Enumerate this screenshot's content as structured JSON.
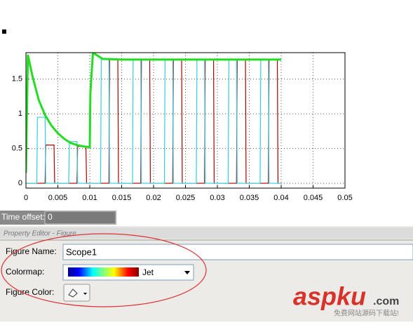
{
  "chart_data": {
    "type": "line",
    "xlim": [
      0,
      0.05
    ],
    "ylim": [
      -0.07,
      1.88
    ],
    "xticks": [
      0,
      0.005,
      0.01,
      0.015,
      0.02,
      0.025,
      0.03,
      0.035,
      0.04,
      0.045,
      0.05
    ],
    "yticks": [
      0,
      0.5,
      1,
      1.5
    ],
    "grid": true,
    "series": [
      {
        "color": "#b00000",
        "x": [
          0,
          0.003,
          0.0031,
          0.0044,
          0.0045,
          0.008,
          0.0081,
          0.0094,
          0.0095,
          0.013,
          0.0131,
          0.0144,
          0.0145,
          0.018,
          0.0181,
          0.0194,
          0.0195,
          0.023,
          0.0231,
          0.0244,
          0.0245,
          0.028,
          0.0281,
          0.0294,
          0.0295,
          0.033,
          0.0331,
          0.0344,
          0.0345,
          0.038,
          0.0381,
          0.0394,
          0.0395,
          0.04
        ],
        "values": [
          0,
          0,
          0.55,
          0.55,
          0,
          0,
          0.53,
          0.53,
          0,
          0,
          1.78,
          1.78,
          0,
          0,
          1.78,
          1.78,
          0,
          0,
          1.78,
          1.78,
          0,
          0,
          1.78,
          1.78,
          0,
          0,
          1.78,
          1.78,
          0,
          0,
          1.78,
          1.78,
          0,
          0
        ]
      },
      {
        "color": "#30d0e0",
        "x": [
          0,
          0.0017,
          0.0018,
          0.003,
          0.0031,
          0.0067,
          0.0068,
          0.008,
          0.0081,
          0.0117,
          0.0118,
          0.013,
          0.0131,
          0.0167,
          0.0168,
          0.018,
          0.0181,
          0.0217,
          0.0218,
          0.023,
          0.0231,
          0.0267,
          0.0268,
          0.028,
          0.0281,
          0.0317,
          0.0318,
          0.033,
          0.0331,
          0.0367,
          0.0368,
          0.038,
          0.0381,
          0.04
        ],
        "values": [
          0,
          0,
          0.95,
          0.95,
          0,
          0,
          0.6,
          0.6,
          0,
          0,
          1.78,
          1.78,
          0,
          0,
          1.78,
          1.78,
          0,
          0,
          1.78,
          1.78,
          0,
          0,
          1.78,
          1.78,
          0,
          0,
          1.78,
          1.78,
          0,
          0,
          1.78,
          1.78,
          0,
          0
        ]
      },
      {
        "color": "#22dd22",
        "x": [
          0,
          0.0003,
          0.001,
          0.002,
          0.003,
          0.004,
          0.005,
          0.006,
          0.007,
          0.008,
          0.009,
          0.01,
          0.0101,
          0.0105,
          0.012,
          0.015,
          0.02,
          0.025,
          0.03,
          0.035,
          0.04
        ],
        "values": [
          0.15,
          1.85,
          1.55,
          1.2,
          0.98,
          0.83,
          0.72,
          0.64,
          0.58,
          0.55,
          0.53,
          0.52,
          1.3,
          1.88,
          1.79,
          1.78,
          1.78,
          1.78,
          1.78,
          1.78,
          1.78
        ]
      }
    ]
  },
  "ui": {
    "time_offset_label": "Time offset:",
    "time_offset_value": "0",
    "panel_title": "Property Editor - Figure",
    "figure_name_label": "Figure Name:",
    "figure_name_value": "Scope1",
    "colormap_label": "Colormap:",
    "colormap_value": "Jet",
    "figure_color_label": "Figure Color:",
    "watermark": "aspku",
    "watermark_suffix": ".com",
    "watermark_sub": "免费网站源码下载站!"
  }
}
